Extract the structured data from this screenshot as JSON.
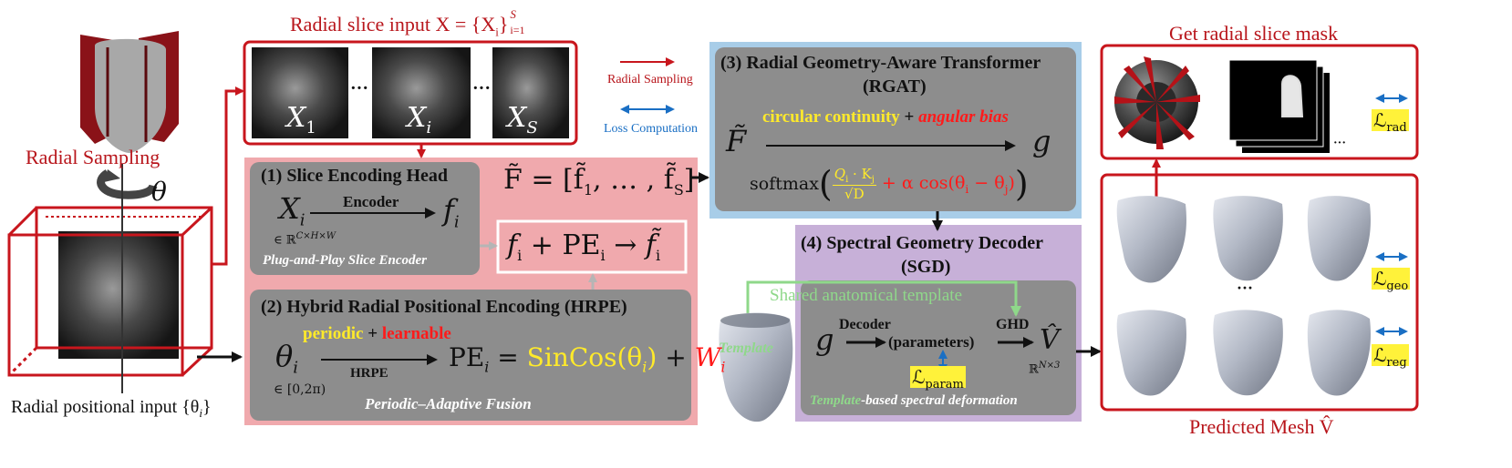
{
  "colors": {
    "accent_red": "#b8151b",
    "yellow": "#ffea2a",
    "green": "#8fd88a",
    "blue": "#1a6fc4",
    "pink_panel": "#f0a9ad",
    "blue_panel": "#a8cde8",
    "purple_panel": "#c7b0d8",
    "gray_box": "#8d8d8d"
  },
  "left": {
    "radial_sampling": "Radial Sampling",
    "theta": "θ",
    "radial_positional_input": "Radial positional input {θ",
    "radial_positional_sub": "i",
    "radial_positional_close": "}"
  },
  "input": {
    "title": "Radial slice input X  =  {X",
    "title_sub": "i",
    "title_close": "}",
    "title_range_sup": "S",
    "title_range_sub": "i=1",
    "slices": [
      {
        "label": "X",
        "sub": "1"
      },
      {
        "label": "X",
        "sub": "i"
      },
      {
        "label": "X",
        "sub": "S"
      }
    ],
    "ellipsis": "···"
  },
  "legend": {
    "radial_sampling": "Radial Sampling",
    "loss_computation": "Loss Computation"
  },
  "seh": {
    "title": "(1) Slice Encoding Head",
    "x_label": "X",
    "x_sub": "i",
    "x_domain": "∈ ℝ",
    "x_domain_sup": "C×H×W",
    "encoder": "Encoder",
    "f": "f",
    "f_sub": "i",
    "subtitle": "Plug-and-Play Slice Encoder"
  },
  "fusion": {
    "formula": "f",
    "sub": "i",
    "rest": " + PE",
    "rest_sub": "i",
    "arrow": " → ",
    "ftilde": "f̃",
    "ftilde_sub": "i"
  },
  "ftilde_set": {
    "lhs": "F̃ = [f̃",
    "s1": "1",
    "mid": ", … , f̃",
    "s2": "S",
    "rhs": "]"
  },
  "hrpe": {
    "title": "(2) Hybrid Radial Positional Encoding (HRPE)",
    "periodic": "periodic",
    "plus": " + ",
    "learnable": "learnable",
    "theta": "θ",
    "theta_sub": "i",
    "theta_domain": "∈ [0,2π)",
    "arrow_label": "HRPE",
    "pe": "PE",
    "pe_sub": "i",
    "eq": " = ",
    "sincos": "SinCos(θ",
    "sincos_sub": "i",
    "sincos_close": ")",
    "plus2": " + ",
    "w": "W",
    "w_sub": "i",
    "subtitle": "Periodic–Adaptive Fusion"
  },
  "rgat": {
    "title": "(3) Radial Geometry-Aware Transformer",
    "abbr": "(RGAT)",
    "circular": "circular continuity",
    "plus": " + ",
    "angular": "angular bias",
    "ftilde": "F̃",
    "g": "g",
    "softmax": "softmax",
    "q": "Q",
    "q_sub": "i",
    "dot": " · K",
    "k_sub": "j",
    "sqrt": "√D",
    "alpha": "+ α cos(θ",
    "alpha_sub1": "i",
    "minus": " − θ",
    "alpha_sub2": "j",
    "alpha_close": ")"
  },
  "sgd": {
    "title": "(4) Spectral Geometry Decoder",
    "abbr": "(SGD)",
    "shared_template": "Shared anatomical template",
    "template": "Template",
    "g": "g",
    "decoder": "Decoder",
    "parameters": "(parameters)",
    "ghd": "GHD",
    "vhat": "V̂",
    "domain": "ℝ",
    "domain_sup": "N×3",
    "loss": "ℒ",
    "loss_sub": "param",
    "subtitle_a": "Template",
    "subtitle_b": "-based spectral deformation"
  },
  "right": {
    "mask_title": "Get radial slice mask",
    "loss_rad": "ℒ",
    "loss_rad_sub": "rad",
    "loss_geo": "ℒ",
    "loss_geo_sub": "geo",
    "loss_reg": "ℒ",
    "loss_reg_sub": "reg",
    "ellipsis": "···",
    "mesh_title": "Predicted Mesh V̂"
  }
}
